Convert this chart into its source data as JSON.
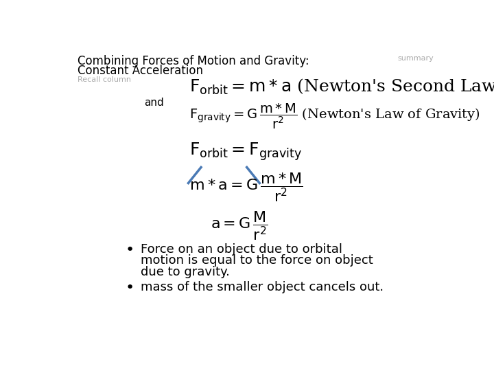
{
  "title_line1": "Combining Forces of Motion and Gravity:",
  "title_line2": "Constant Acceleration",
  "summary_text": "summary",
  "recall_text": "Recall column",
  "and_text": "and",
  "bg_color": "#ffffff",
  "title_color": "#000000",
  "title_fontsize": 12,
  "recall_color": "#aaaaaa",
  "recall_fontsize": 8,
  "summary_color": "#aaaaaa",
  "summary_fontsize": 8,
  "eq_fontsize": 14,
  "and_fontsize": 11,
  "bullet_fontsize": 13,
  "strike_color": "#4a7ab5",
  "title_fontweight": "normal"
}
